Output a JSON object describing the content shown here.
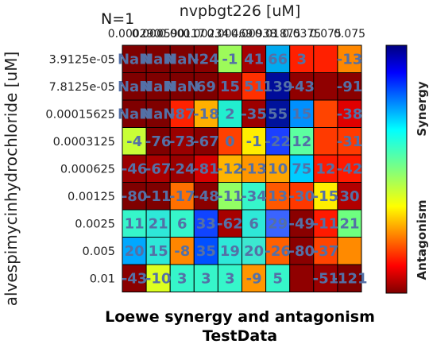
{
  "chart_data": {
    "type": "heatmap",
    "n_label": "N=1",
    "top_title": "nvpbgt226 [uM]",
    "ylabel": "alvespimycinhydrochloride [uM]",
    "bottom_title": "Loewe synergy and antagonism",
    "bottom_subtitle": "TestData",
    "x_ticks": [
      "0.000290",
      "0.000590",
      "0.00117",
      "0.00234",
      "0.00469",
      "0.00938",
      "0.01875",
      "0.0375",
      "0.075",
      "0.075"
    ],
    "y_ticks": [
      "3.9125e-05",
      "7.8125e-05",
      "0.00015625",
      "0.0003125",
      "0.000625",
      "0.00125",
      "0.0025",
      "0.005",
      "0.01"
    ],
    "colorbar_labels": {
      "top": "Synergy",
      "bottom": "Antagonism"
    },
    "values": [
      [
        "NaN",
        "NaN",
        "NaN",
        "-24",
        "-1",
        "41",
        "66",
        "3",
        "",
        "-13"
      ],
      [
        "NaN",
        "NaN",
        "NaN",
        "69",
        "15",
        "51",
        "139",
        "-43",
        "",
        "-91"
      ],
      [
        "NaN",
        "NaN",
        "-87",
        "-18",
        "2",
        "-35",
        "55",
        "15",
        "",
        "-38"
      ],
      [
        "-4",
        "-76",
        "-73",
        "-67",
        "0",
        "-1",
        "-22",
        "12",
        "",
        "-31"
      ],
      [
        "-46",
        "-67",
        "-24",
        "-81",
        "-12",
        "-13",
        "10",
        "75",
        "12",
        "-42"
      ],
      [
        "-80",
        "-11",
        "-17",
        "-48",
        "-11",
        "-34",
        "13",
        "-30",
        "-15",
        "30"
      ],
      [
        "11",
        "21",
        "6",
        "33",
        "-62",
        "6",
        "29",
        "-49",
        "-11",
        "21"
      ],
      [
        "20",
        "15",
        "-8",
        "35",
        "19",
        "20",
        "-26",
        "-80",
        "-37",
        ""
      ],
      [
        "-43",
        "-10",
        "3",
        "3",
        "3",
        "-9",
        "5",
        "",
        "-51",
        "-121"
      ]
    ],
    "colors": [
      [
        "#7f0000",
        "#7f0000",
        "#7f0000",
        "#8a0000",
        "#9dfa5a",
        "#a60000",
        "#00aaf0",
        "#ff2000",
        "#ff2000",
        "#ff8800"
      ],
      [
        "#7f0000",
        "#7f0000",
        "#7f0000",
        "#7f0000",
        "#a00000",
        "#ff3000",
        "#000c9a",
        "#900000",
        "#900000",
        "#8a0000"
      ],
      [
        "#7f0000",
        "#7f0000",
        "#ff2200",
        "#ffb000",
        "#22eecf",
        "#9c0000",
        "#00129c",
        "#0090ff",
        "#ff4400",
        "#e00000"
      ],
      [
        "#c8ff37",
        "#7f0000",
        "#9a0000",
        "#8a0000",
        "#ff4000",
        "#ffee00",
        "#1c40ff",
        "#5cffa0",
        "#ff3a00",
        "#ff3a00"
      ],
      [
        "#9a0000",
        "#aa0000",
        "#9a0000",
        "#d40000",
        "#ffb400",
        "#ff9600",
        "#ffa600",
        "#00ccff",
        "#ff1a00",
        "#ff1a00"
      ],
      [
        "#7f0000",
        "#7f0000",
        "#ff7000",
        "#8a0000",
        "#92ff64",
        "#36f6ca",
        "#ff5800",
        "#ff3800",
        "#ffee00",
        "#b20000"
      ],
      [
        "#36f6ca",
        "#2ee8d8",
        "#36f6ca",
        "#1044ff",
        "#a60000",
        "#2ee8d8",
        "#3a64ff",
        "#8a0000",
        "#ff1a00",
        "#6eff80"
      ],
      [
        "#00a8ff",
        "#2ee8d8",
        "#ff8600",
        "#0050ff",
        "#2ee8d8",
        "#3ce8d0",
        "#ff6000",
        "#8a0000",
        "#ff4400",
        "#ff8a00"
      ],
      [
        "#8a0000",
        "#ddff20",
        "#36f6ca",
        "#36f6ca",
        "#36f6ca",
        "#ff9600",
        "#36f6ca",
        "#900000",
        "#9a0000",
        "#7f0000"
      ]
    ]
  }
}
